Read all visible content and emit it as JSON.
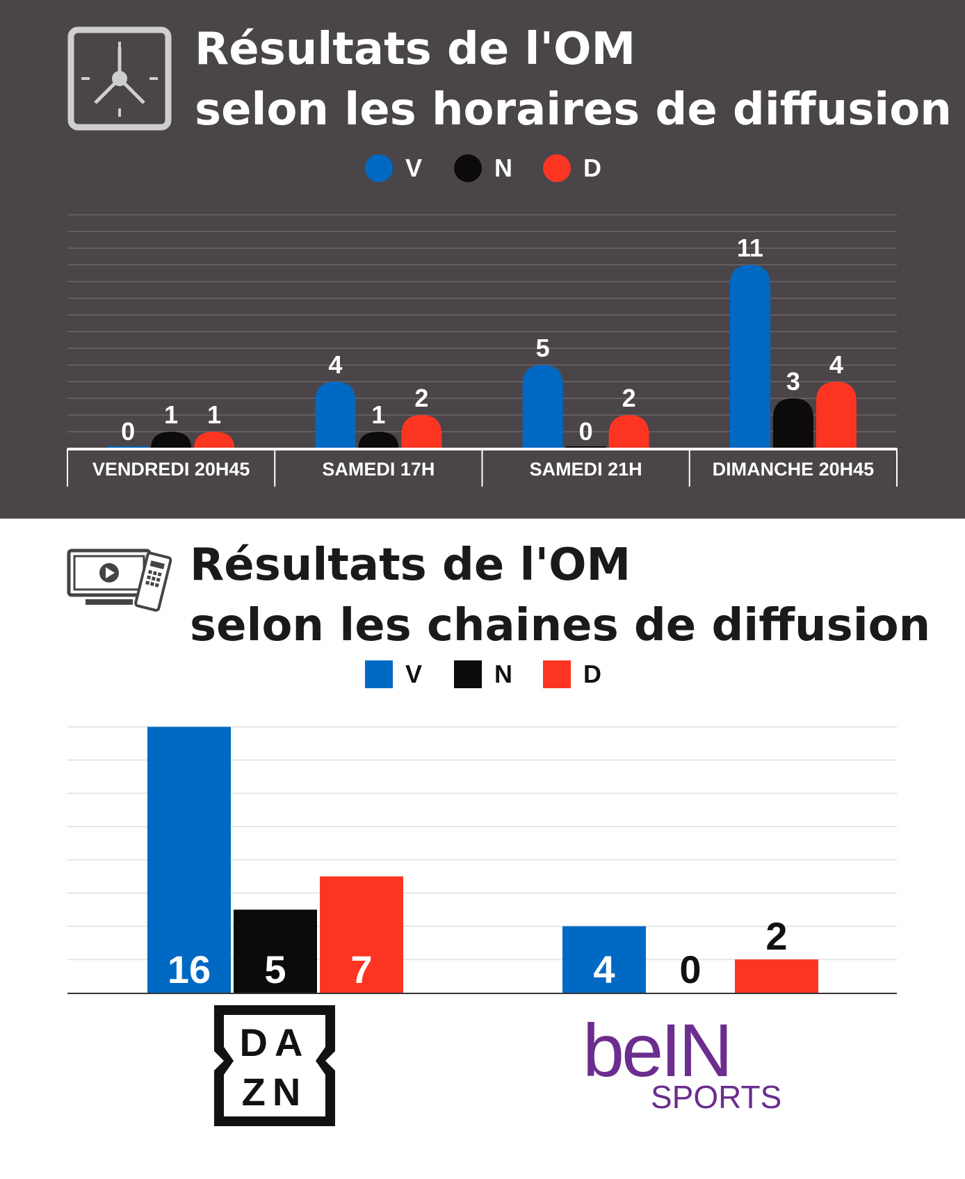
{
  "colors": {
    "V": "#0069c3",
    "N": "#0d0a0b",
    "D": "#fc3522",
    "top_bg": "#4a4549",
    "bein_purple": "#6b2d8e"
  },
  "top": {
    "title_line1": "Résultats de l'OM",
    "title_line2": "selon les horaires de diffusion",
    "icon": "clock-icon"
  },
  "bottom": {
    "title_line1": "Résultats de l'OM",
    "title_line2": "selon les chaines de diffusion",
    "icon": "tv-remote-icon",
    "logo_dazn": {
      "line1": "DA",
      "line2": "ZN"
    },
    "logo_bein": {
      "main": "beIN",
      "sub": "SPORTS"
    }
  },
  "legend": [
    {
      "key": "V",
      "label": "V"
    },
    {
      "key": "N",
      "label": "N"
    },
    {
      "key": "D",
      "label": "D"
    }
  ],
  "chart_data": [
    {
      "type": "bar",
      "title": "Résultats de l'OM selon les horaires de diffusion",
      "categories": [
        "VENDREDI 20H45",
        "SAMEDI 17H",
        "SAMEDI 21H",
        "DIMANCHE 20H45"
      ],
      "series": [
        {
          "name": "V",
          "values": [
            0,
            4,
            5,
            11
          ]
        },
        {
          "name": "N",
          "values": [
            1,
            1,
            0,
            3
          ]
        },
        {
          "name": "D",
          "values": [
            1,
            2,
            2,
            4
          ]
        }
      ],
      "ylim": [
        0,
        14
      ],
      "xlabel": "",
      "ylabel": "",
      "grid": true,
      "legend": "top-center"
    },
    {
      "type": "bar",
      "title": "Résultats de l'OM selon les chaines de diffusion",
      "categories": [
        "DAZN",
        "beIN SPORTS"
      ],
      "series": [
        {
          "name": "V",
          "values": [
            16,
            4
          ]
        },
        {
          "name": "N",
          "values": [
            5,
            0
          ]
        },
        {
          "name": "D",
          "values": [
            7,
            2
          ]
        }
      ],
      "ylim": [
        0,
        16
      ],
      "xlabel": "",
      "ylabel": "",
      "grid": true,
      "legend": "top-center"
    }
  ]
}
